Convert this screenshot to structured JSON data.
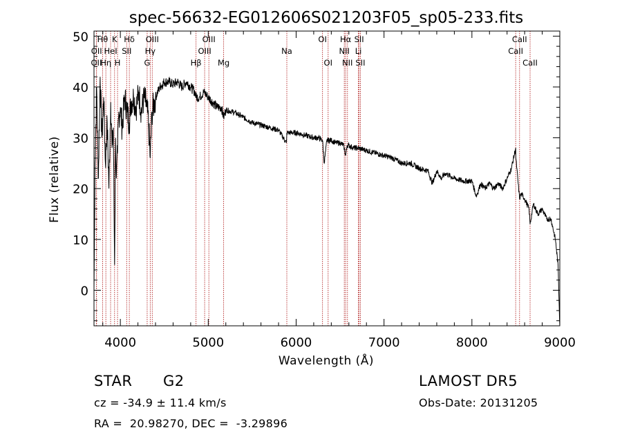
{
  "chart_data": {
    "type": "line",
    "title": "spec-56632-EG012606S021203F05_sp05-233.fits",
    "xlabel": "Wavelength (Å)",
    "ylabel": "Flux (relative)",
    "xlim": [
      3700,
      9000
    ],
    "ylim": [
      -7,
      51
    ],
    "xticks": [
      4000,
      5000,
      6000,
      7000,
      8000,
      9000
    ],
    "yticks": [
      0,
      10,
      20,
      30,
      40,
      50
    ],
    "grid": false,
    "line_color": "#000000",
    "marker_color": "#b22222",
    "spectrum": {
      "x": [
        3700,
        3712,
        3730,
        3750,
        3770,
        3790,
        3810,
        3830,
        3850,
        3870,
        3890,
        3905,
        3920,
        3934,
        3945,
        3955,
        3968,
        3980,
        4000,
        4020,
        4050,
        4080,
        4102,
        4120,
        4150,
        4180,
        4210,
        4240,
        4270,
        4300,
        4320,
        4340,
        4360,
        4400,
        4450,
        4500,
        4550,
        4600,
        4650,
        4700,
        4750,
        4800,
        4850,
        4861,
        4900,
        4950,
        5000,
        5050,
        5100,
        5150,
        5175,
        5200,
        5300,
        5400,
        5500,
        5600,
        5700,
        5800,
        5890,
        5895,
        5950,
        6000,
        6100,
        6200,
        6250,
        6300,
        6320,
        6350,
        6400,
        6450,
        6500,
        6540,
        6563,
        6580,
        6600,
        6650,
        6700,
        6800,
        6900,
        7000,
        7100,
        7200,
        7300,
        7400,
        7500,
        7550,
        7600,
        7650,
        7700,
        7800,
        7900,
        8000,
        8050,
        8100,
        8150,
        8200,
        8250,
        8300,
        8350,
        8400,
        8450,
        8498,
        8500,
        8542,
        8560,
        8600,
        8650,
        8662,
        8700,
        8750,
        8800,
        8850,
        8900,
        8950,
        8980,
        9000
      ],
      "y": [
        0,
        25,
        40,
        22,
        42,
        30,
        38,
        25,
        33,
        20,
        37,
        28,
        32,
        5,
        30,
        22,
        27,
        34,
        36,
        32,
        38,
        35,
        33,
        37,
        38,
        36,
        39,
        35,
        38,
        36,
        33,
        26,
        35,
        38,
        40,
        41,
        41,
        40.5,
        41,
        40,
        41,
        40,
        39,
        38,
        38,
        39,
        38,
        37,
        36,
        36,
        34,
        35.5,
        35,
        34,
        33,
        32.5,
        32,
        31.5,
        29,
        31,
        31,
        31,
        30.5,
        30,
        30,
        29.5,
        25,
        29.5,
        29.5,
        29,
        29,
        28.5,
        26.5,
        28.5,
        28.5,
        28,
        28,
        27.5,
        27,
        26.5,
        26,
        25,
        25,
        24,
        23.5,
        21,
        23.5,
        22,
        23,
        22,
        21.5,
        21.5,
        18.5,
        21,
        20,
        21,
        20,
        21,
        20,
        22,
        24,
        28,
        26,
        18,
        19,
        18,
        16,
        13,
        17,
        15,
        16,
        14,
        14,
        10,
        5,
        -7
      ]
    },
    "line_markers": [
      {
        "name": "OII",
        "x": 3727,
        "row": 2
      },
      {
        "name": "OII",
        "x": 3729,
        "row": 1
      },
      {
        "name": "Hθ",
        "x": 3798,
        "row": 0
      },
      {
        "name": "Hη",
        "x": 3835,
        "row": 2
      },
      {
        "name": "HeI",
        "x": 3889,
        "row": 1
      },
      {
        "name": "K",
        "x": 3934,
        "row": 0
      },
      {
        "name": "H",
        "x": 3968,
        "row": 2
      },
      {
        "name": "Hδ",
        "x": 4102,
        "row": 0
      },
      {
        "name": "SII",
        "x": 4072,
        "row": 1
      },
      {
        "name": "OIII",
        "x": 4363,
        "row": 0
      },
      {
        "name": "Hγ",
        "x": 4340,
        "row": 1
      },
      {
        "name": "G",
        "x": 4305,
        "row": 2
      },
      {
        "name": "OIII",
        "x": 5007,
        "row": 0
      },
      {
        "name": "OIII",
        "x": 4959,
        "row": 1
      },
      {
        "name": "Hβ",
        "x": 4861,
        "row": 2
      },
      {
        "name": "Mg",
        "x": 5175,
        "row": 2
      },
      {
        "name": "Na",
        "x": 5894,
        "row": 1
      },
      {
        "name": "OI",
        "x": 6300,
        "row": 0
      },
      {
        "name": "OI",
        "x": 6364,
        "row": 2
      },
      {
        "name": "Hα",
        "x": 6563,
        "row": 0
      },
      {
        "name": "NII",
        "x": 6548,
        "row": 1
      },
      {
        "name": "NII",
        "x": 6584,
        "row": 2
      },
      {
        "name": "SII",
        "x": 6717,
        "row": 0
      },
      {
        "name": "Li",
        "x": 6708,
        "row": 1
      },
      {
        "name": "SII",
        "x": 6731,
        "row": 2
      },
      {
        "name": "CaII",
        "x": 8542,
        "row": 0
      },
      {
        "name": "CaII",
        "x": 8498,
        "row": 1
      },
      {
        "name": "CaII",
        "x": 8662,
        "row": 2
      }
    ]
  },
  "info": {
    "object_class": "STAR",
    "subclass": "G2",
    "survey": "LAMOST DR5",
    "cz_line": "cz = -34.9 ± 11.4 km/s",
    "obs_date_line": "Obs-Date: 20131205",
    "coords_line": "RA =  20.98270, DEC =  -3.29896"
  }
}
